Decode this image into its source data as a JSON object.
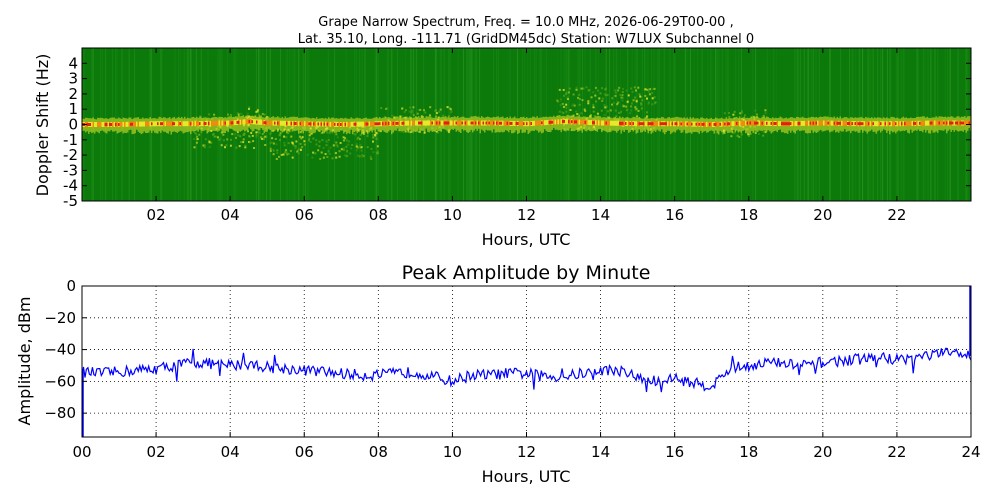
{
  "chart_data": [
    {
      "type": "heatmap",
      "title_line1": "Grape Narrow Spectrum, Freq. = 10.0 MHz, 2026-06-29T00-00 ,",
      "title_line2": "Lat.  35.10, Long. -111.71 (GridDM45dc) Station: W7LUX Subchannel 0",
      "xlabel": "Hours, UTC",
      "ylabel": "Doppler Shift (Hz)",
      "xlim": [
        0,
        24
      ],
      "ylim": [
        -5,
        5
      ],
      "x_ticks": [
        2,
        4,
        6,
        8,
        10,
        12,
        14,
        16,
        18,
        20,
        22
      ],
      "x_tick_labels": [
        "02",
        "04",
        "06",
        "08",
        "10",
        "12",
        "14",
        "16",
        "18",
        "20",
        "22"
      ],
      "y_ticks": [
        -5,
        -4,
        -3,
        -2,
        -1,
        0,
        1,
        2,
        3,
        4
      ],
      "y_tick_labels": [
        "-5",
        "-4",
        "-3",
        "-2",
        "-1",
        "0",
        "1",
        "2",
        "3",
        "4"
      ],
      "grid": false,
      "colors": {
        "background": "#0b7a0b",
        "low": "#5aa818",
        "mid": "#e8e82a",
        "high": "#f08a10",
        "peak": "#e02010"
      },
      "carrier_doppler_hz": [
        [
          0.0,
          0.0
        ],
        [
          1.0,
          0.0
        ],
        [
          2.0,
          0.05
        ],
        [
          3.0,
          0.05
        ],
        [
          4.0,
          0.1
        ],
        [
          4.5,
          0.2
        ],
        [
          5.0,
          0.1
        ],
        [
          6.0,
          0.05
        ],
        [
          7.0,
          0.0
        ],
        [
          8.0,
          0.05
        ],
        [
          9.0,
          0.1
        ],
        [
          10.0,
          0.1
        ],
        [
          11.0,
          0.1
        ],
        [
          12.0,
          0.05
        ],
        [
          13.0,
          0.2
        ],
        [
          14.0,
          0.1
        ],
        [
          15.0,
          0.05
        ],
        [
          16.0,
          0.05
        ],
        [
          17.0,
          0.0
        ],
        [
          18.0,
          0.1
        ],
        [
          19.0,
          0.05
        ],
        [
          20.0,
          0.1
        ],
        [
          21.0,
          0.05
        ],
        [
          22.0,
          0.05
        ],
        [
          23.0,
          0.1
        ],
        [
          24.0,
          0.1
        ]
      ],
      "spread_regions": [
        {
          "x": [
            3.0,
            5.0
          ],
          "y": [
            -1.5,
            0.8
          ]
        },
        {
          "x": [
            4.4,
            4.8
          ],
          "y": [
            0.2,
            1.2
          ]
        },
        {
          "x": [
            5.0,
            8.0
          ],
          "y": [
            -2.2,
            0.3
          ]
        },
        {
          "x": [
            8.0,
            10.0
          ],
          "y": [
            -0.5,
            1.2
          ]
        },
        {
          "x": [
            12.8,
            15.5
          ],
          "y": [
            -0.3,
            2.5
          ]
        },
        {
          "x": [
            17.3,
            18.5
          ],
          "y": [
            -0.8,
            1.0
          ]
        }
      ]
    },
    {
      "type": "line",
      "title": "Peak Amplitude by Minute",
      "xlabel": "Hours, UTC",
      "ylabel": "Amplitude, dBm",
      "xlim": [
        0,
        24
      ],
      "ylim": [
        -95,
        0
      ],
      "x_ticks": [
        0,
        2,
        4,
        6,
        8,
        10,
        12,
        14,
        16,
        18,
        20,
        22,
        24
      ],
      "x_tick_labels": [
        "00",
        "02",
        "04",
        "06",
        "08",
        "10",
        "12",
        "14",
        "16",
        "18",
        "20",
        "22",
        "24"
      ],
      "y_ticks": [
        0,
        -20,
        -40,
        -60,
        -80
      ],
      "y_tick_labels": [
        "0",
        "−20",
        "−40",
        "−60",
        "−80"
      ],
      "grid": true,
      "series": [
        {
          "color": "#0000ff",
          "x": [
            0,
            0.5,
            1,
            1.5,
            2,
            2.5,
            3,
            3.5,
            4,
            4.5,
            5,
            5.5,
            6,
            6.5,
            7,
            7.5,
            8,
            8.5,
            9,
            9.5,
            10,
            10.5,
            11,
            11.5,
            12,
            12.5,
            13,
            13.5,
            14,
            14.5,
            15,
            15.5,
            16,
            16.5,
            17,
            17.5,
            18,
            18.5,
            19,
            19.5,
            20,
            20.5,
            21,
            21.5,
            22,
            22.5,
            23,
            23.5,
            24
          ],
          "y": [
            -54,
            -55,
            -54,
            -53,
            -52,
            -50,
            -48,
            -49,
            -50,
            -49,
            -51,
            -52,
            -53,
            -54,
            -55,
            -56,
            -56,
            -55,
            -54,
            -57,
            -60,
            -56,
            -56,
            -55,
            -55,
            -57,
            -57,
            -55,
            -53,
            -53,
            -58,
            -60,
            -58,
            -61,
            -63,
            -52,
            -50,
            -48,
            -49,
            -50,
            -48,
            -47,
            -46,
            -45,
            -46,
            -45,
            -43,
            -42,
            -44
          ]
        }
      ],
      "edge_spike_end": {
        "x": 24,
        "y": 0
      },
      "edge_spike_start": {
        "x": 0,
        "y": -95
      }
    }
  ]
}
